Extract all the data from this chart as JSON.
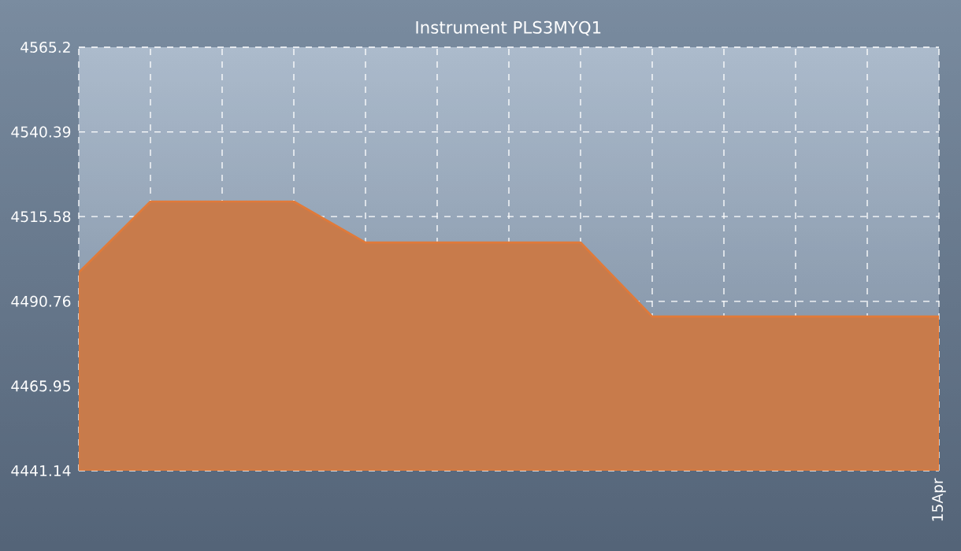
{
  "chart_data": {
    "type": "area",
    "title": "Instrument PLS3MYQ1",
    "categories": [
      null,
      null,
      null,
      null,
      null,
      null,
      null,
      null,
      null,
      null,
      null,
      null,
      "15Apr"
    ],
    "values": [
      4499.2,
      4520.0,
      4520.0,
      4520.0,
      4508.0,
      4508.0,
      4508.0,
      4508.0,
      4486.3,
      4486.3,
      4486.3,
      4486.3,
      4486.3
    ],
    "color": "#e07a3a",
    "ylim": [
      4441.14,
      4565.2
    ],
    "yticks": [
      4441.14,
      4465.95,
      4490.76,
      4515.58,
      4540.39,
      4565.2
    ],
    "grid": true
  }
}
